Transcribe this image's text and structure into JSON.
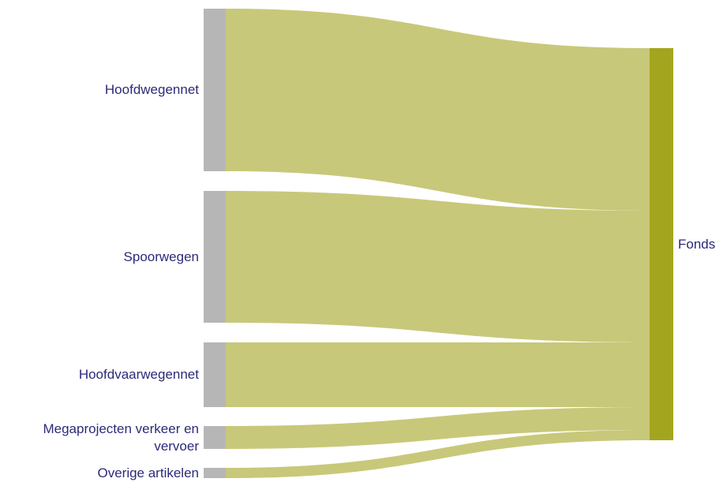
{
  "chart_data": {
    "type": "sankey",
    "title": "",
    "sources": [
      {
        "name": "Hoofdwegennet",
        "label_lines": [
          "Hoofdwegennet"
        ],
        "value": 206
      },
      {
        "name": "Spoorwegen",
        "label_lines": [
          "Spoorwegen"
        ],
        "value": 167
      },
      {
        "name": "Hoofdvaarwegennet",
        "label_lines": [
          "Hoofdvaarwegennet"
        ],
        "value": 82
      },
      {
        "name": "Megaprojecten verkeer en vervoer",
        "label_lines": [
          "Megaprojecten verkeer en",
          "vervoer"
        ],
        "value": 29
      },
      {
        "name": "Overige artikelen",
        "label_lines": [
          "Overige artikelen"
        ],
        "value": 13
      }
    ],
    "target": {
      "name": "Fonds",
      "label": "Fonds"
    },
    "colors": {
      "source_node": "#b6b6b6",
      "target_node": "#a4a51e",
      "link": "#c8c87a",
      "label_text": "#2b2a7a"
    }
  }
}
